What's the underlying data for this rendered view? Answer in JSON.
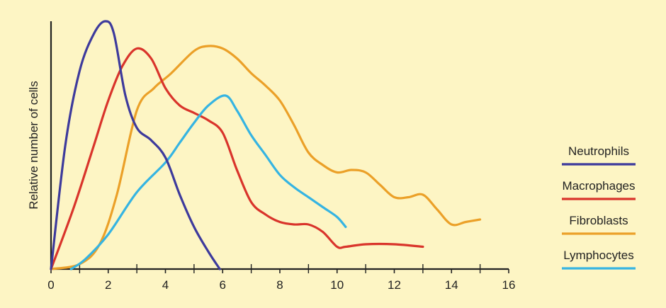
{
  "chart_data": {
    "type": "line",
    "xlabel": "",
    "ylabel": "Relative number of cells",
    "xlim": [
      0,
      16
    ],
    "ylim": [
      0,
      100
    ],
    "xticks": [
      0,
      2,
      4,
      6,
      8,
      10,
      12,
      14,
      16
    ],
    "minor_xticks": [
      1,
      3,
      5,
      7,
      9,
      11,
      13,
      15
    ],
    "grid": false,
    "legend_position": "right",
    "series": [
      {
        "name": "Neutrophils",
        "color": "#3d3a9c",
        "x": [
          0,
          0.5,
          1.0,
          1.5,
          1.9,
          2.2,
          2.6,
          3.0,
          3.5,
          4.0,
          4.5,
          5.0,
          5.5,
          5.9
        ],
        "y": [
          0,
          50,
          80,
          95,
          100,
          95,
          70,
          57,
          52,
          45,
          30,
          17,
          7,
          0
        ]
      },
      {
        "name": "Macrophages",
        "color": "#d9342b",
        "x": [
          0,
          0.8,
          1.5,
          2.0,
          2.5,
          3.0,
          3.5,
          4.0,
          4.5,
          5.0,
          5.5,
          6.0,
          6.5,
          7.0,
          7.5,
          8.0,
          8.5,
          9.0,
          9.5,
          10.0,
          10.3,
          11.0,
          12.0,
          13.0
        ],
        "y": [
          0,
          25,
          50,
          68,
          82,
          89,
          85,
          73,
          66,
          63,
          60,
          55,
          40,
          27,
          22,
          19,
          18,
          18,
          15,
          9,
          9,
          10,
          10,
          9
        ]
      },
      {
        "name": "Fibroblasts",
        "color": "#eba028",
        "x": [
          0,
          1.0,
          1.7,
          2.3,
          3.0,
          3.6,
          4.2,
          5.0,
          5.5,
          6.0,
          6.5,
          7.0,
          7.5,
          8.0,
          8.5,
          9.0,
          9.5,
          10.0,
          10.5,
          11.0,
          11.5,
          12.0,
          12.5,
          13.0,
          13.5,
          14.0,
          14.5,
          15.0
        ],
        "y": [
          0,
          2,
          10,
          30,
          64,
          73,
          79,
          88,
          90,
          89,
          85,
          79,
          74,
          68,
          58,
          47,
          42,
          39,
          40,
          39,
          34,
          29,
          29,
          30,
          24,
          18,
          19,
          20
        ]
      },
      {
        "name": "Lymphocytes",
        "color": "#35b4e2",
        "x": [
          0.7,
          1.2,
          2.0,
          3.0,
          4.0,
          4.5,
          5.0,
          5.5,
          6.1,
          6.5,
          7.0,
          7.5,
          8.0,
          8.5,
          9.0,
          9.5,
          10.0,
          10.3
        ],
        "y": [
          0,
          4,
          14,
          31,
          43,
          51,
          59,
          66,
          70,
          64,
          54,
          46,
          38,
          33,
          29,
          25,
          21,
          17
        ]
      }
    ]
  }
}
